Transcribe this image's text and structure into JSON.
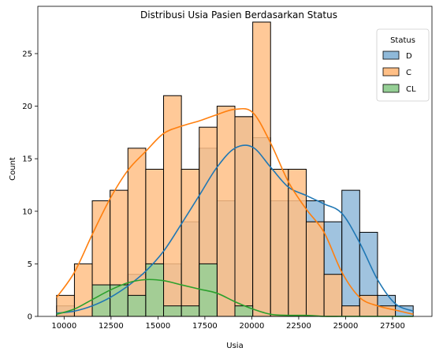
{
  "chart_data": {
    "type": "histogram",
    "title": "Distribusi Usia Pasien Berdasarkan Status",
    "xlabel": "Usia",
    "ylabel": "Count",
    "xlim": [
      8600,
      29600
    ],
    "ylim": [
      0,
      29.5
    ],
    "xticks": [
      10000,
      12500,
      15000,
      17500,
      20000,
      22500,
      25000,
      27500
    ],
    "xtick_labels": [
      "10000",
      "12500",
      "15000",
      "17500",
      "20000",
      "22500",
      "25000",
      "27500"
    ],
    "yticks": [
      0,
      5,
      10,
      15,
      20,
      25
    ],
    "ytick_labels": [
      "0",
      "5",
      "10",
      "15",
      "20",
      "25"
    ],
    "grid": false,
    "kde": true,
    "bins": {
      "start": 9600,
      "width": 950,
      "count": 20
    },
    "legend": {
      "title": "Status",
      "placement": "top-right"
    },
    "series": [
      {
        "name": "D",
        "bar_color": "#8fb9d9",
        "line_color": "#1f77b4",
        "alpha": 0.5,
        "counts": [
          1,
          0,
          0,
          3,
          4,
          5,
          5,
          9,
          16,
          11,
          19,
          17,
          11,
          11,
          11,
          9,
          12,
          8,
          2,
          1
        ],
        "kde": [
          0.3,
          0.5,
          1.0,
          1.8,
          2.9,
          4.3,
          6.2,
          8.8,
          11.5,
          14.2,
          16.0,
          16.1,
          14.2,
          12.3,
          11.5,
          10.7,
          9.8,
          7.0,
          3.5,
          1.2,
          0.5
        ]
      },
      {
        "name": "C",
        "bar_color": "#ffbf86",
        "line_color": "#ff7f0e",
        "alpha": 0.5,
        "counts": [
          2,
          5,
          11,
          12,
          16,
          14,
          21,
          14,
          18,
          20,
          19,
          28,
          14,
          14,
          9,
          4,
          1,
          2,
          1,
          0
        ],
        "kde": [
          1.8,
          4.2,
          7.8,
          11.2,
          13.9,
          15.7,
          17.4,
          18.1,
          18.6,
          19.2,
          19.7,
          19.4,
          16.5,
          12.8,
          10.2,
          8.0,
          4.2,
          1.8,
          1.0,
          0.6,
          0.2
        ]
      },
      {
        "name": "CL",
        "bar_color": "#95cf95",
        "line_color": "#2ca02c",
        "alpha": 0.5,
        "counts": [
          0,
          0,
          3,
          3,
          2,
          5,
          1,
          1,
          5,
          0,
          1,
          0,
          0,
          0,
          0,
          0,
          0,
          0,
          0,
          0
        ],
        "kde": [
          0.2,
          0.7,
          1.6,
          2.5,
          3.2,
          3.5,
          3.4,
          3.0,
          2.6,
          2.2,
          1.4,
          0.7,
          0.2,
          0.1,
          0.1,
          0.0,
          0.0,
          0.0,
          0.0,
          0.0,
          0.0
        ]
      }
    ]
  }
}
